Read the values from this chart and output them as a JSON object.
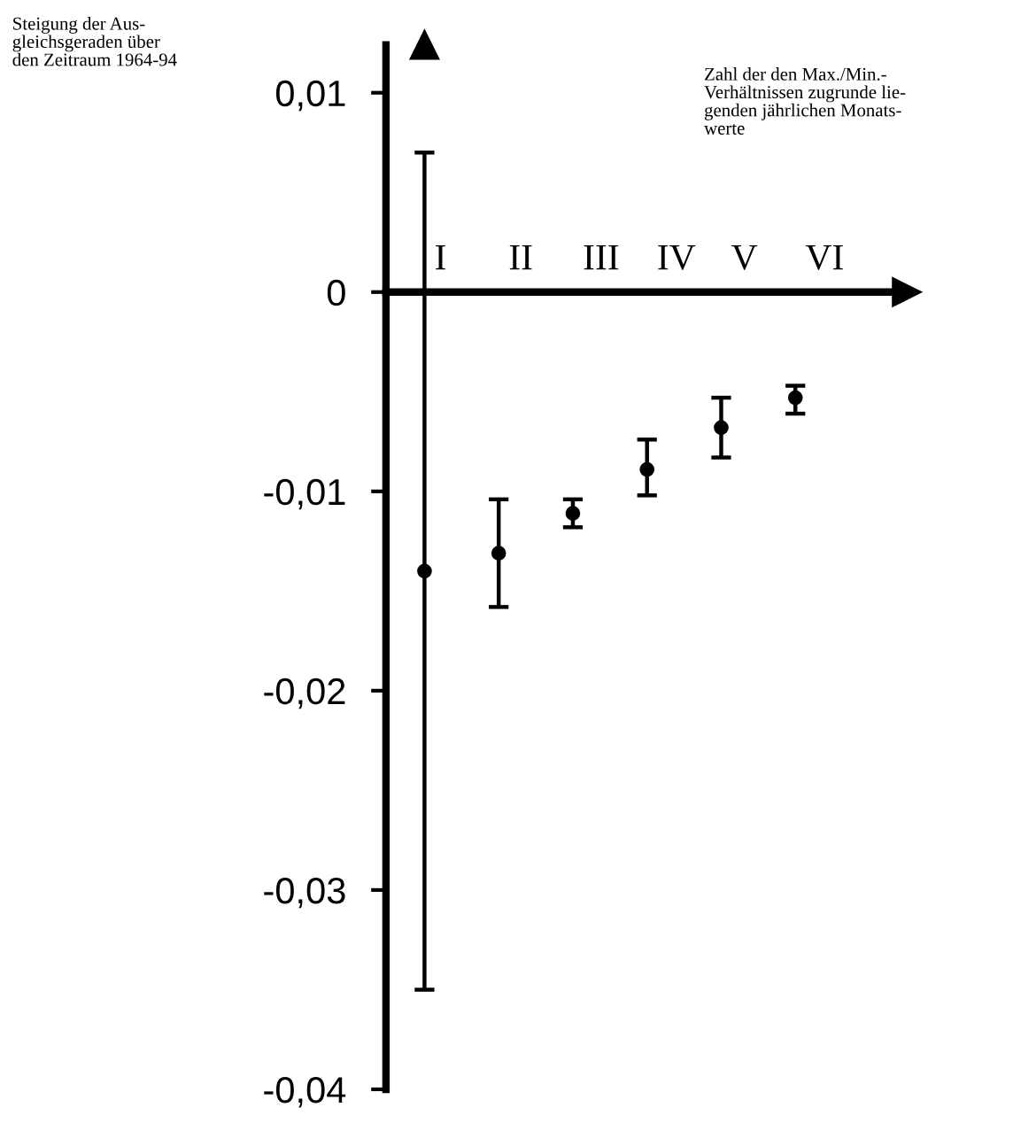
{
  "chart_data": {
    "type": "scatter",
    "ylabel": "Steigung der Aus-\ngleichsgeraden über\nden Zeitraum 1964-94",
    "xlabel": "Zahl der den Max./Min.-\nVerhältnissen zugrunde lie-\ngenden jährlichen Monats-\nwerte",
    "categories": [
      "I",
      "II",
      "III",
      "IV",
      "V",
      "VI"
    ],
    "series": [
      {
        "color": "#000000",
        "values": [
          -0.014,
          -0.0131,
          -0.0111,
          -0.0089,
          -0.0068,
          -0.0053
        ],
        "errors": [
          [
            -0.035,
            0.007
          ],
          [
            -0.0158,
            -0.0104
          ],
          [
            -0.0118,
            -0.0104
          ],
          [
            -0.0102,
            -0.0074
          ],
          [
            -0.0083,
            -0.0053
          ],
          [
            -0.0061,
            -0.0047
          ]
        ]
      }
    ],
    "ylim": [
      -0.04,
      0.0124
    ],
    "yticks": [
      {
        "value": 0.01,
        "label": "0,01"
      },
      0,
      {
        "value": -0.01,
        "label": "-0,01"
      },
      {
        "value": -0.02,
        "label": "-0,02"
      },
      {
        "value": -0.03,
        "label": "-0,03"
      },
      {
        "value": -0.04,
        "label": "-0,04"
      }
    ],
    "marker": "circle",
    "grid": false,
    "legend": false
  }
}
